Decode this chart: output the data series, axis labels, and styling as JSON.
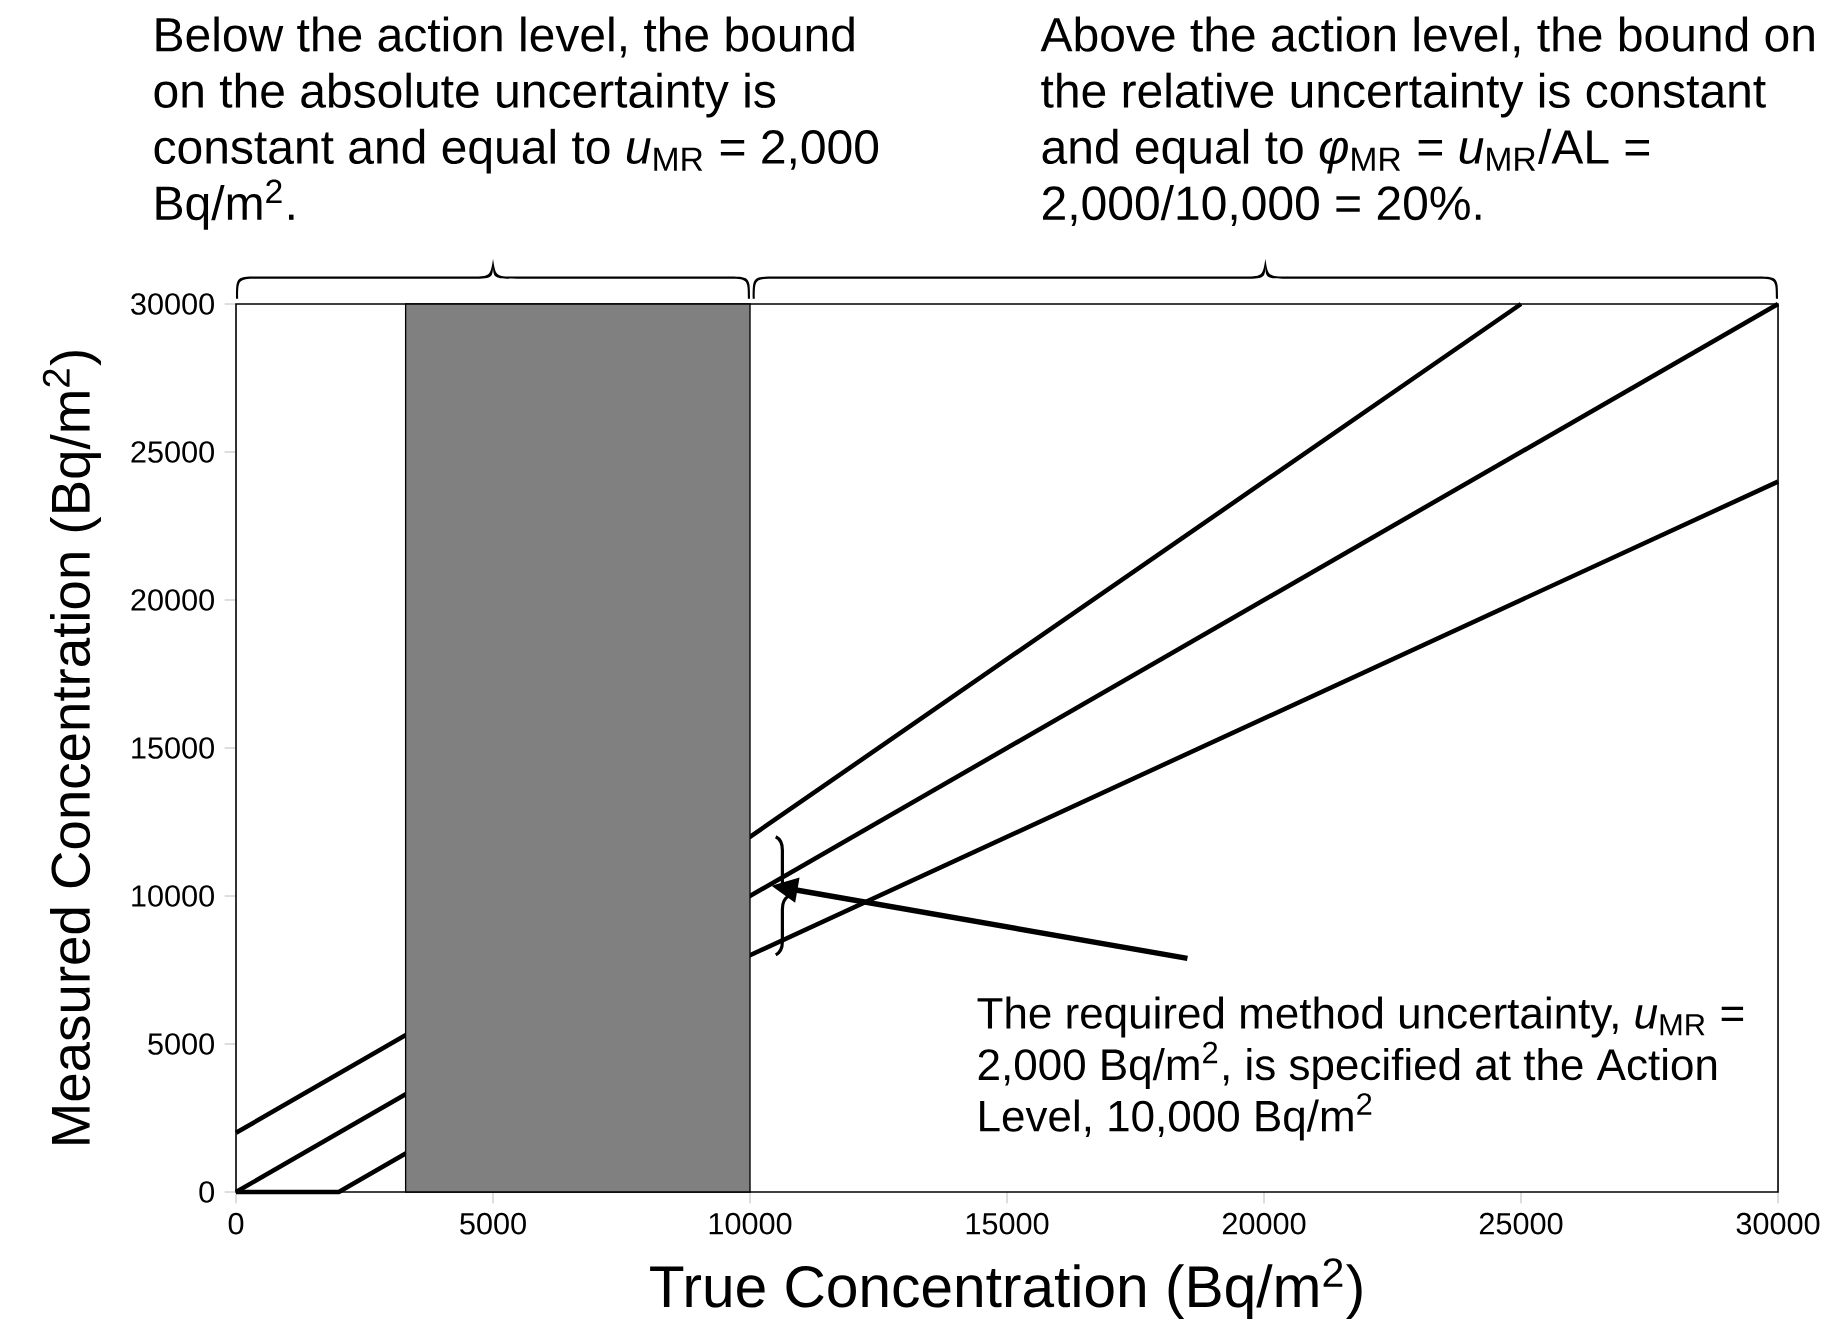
{
  "chart_data": {
    "type": "line",
    "xlabel": "True Concentration (Bq/m$^{2}$)",
    "ylabel": "Measured Concentration (Bq/m$^{2}$)",
    "series": [
      {
        "color": "#000000",
        "x": [
          0,
          10000,
          25000
        ],
        "values": [
          2000,
          12000,
          30000
        ]
      },
      {
        "color": "#000000",
        "x": [
          0,
          30000
        ],
        "values": [
          0,
          30000
        ]
      },
      {
        "color": "#000000",
        "x": [
          0,
          2000,
          10000,
          30000
        ],
        "values": [
          0,
          0,
          8000,
          24000
        ]
      }
    ],
    "bands": [
      {
        "axis": "x",
        "from": 3300,
        "to": 10000,
        "color": "#808080"
      }
    ],
    "annotations": [
      "Below the action level, the bound on the absolute uncertainty is constant and equal to  *u*$_{MR}$ = 2,000 Bq/m$^{2}$.",
      "Above the action level, the bound on the relative uncertainty is constant and equal to  *φ*$_{MR}$ = *u*$_{MR}$/AL = 2,000/10,000 = 20%.",
      "The required method uncertainty, *u*$_{MR}$ = 2,000 Bq/m$^{2}$, is specified at the Action Level, 10,000 Bq/m$^{2}$"
    ],
    "xlim": [
      0,
      30000
    ],
    "ylim": [
      0,
      30000
    ],
    "xticks": [
      0,
      5000,
      10000,
      15000,
      20000,
      25000,
      30000
    ],
    "yticks": [
      0,
      5000,
      10000,
      15000,
      20000,
      25000,
      30000
    ],
    "grid": false,
    "marker": "none",
    "line_style": "solid"
  }
}
